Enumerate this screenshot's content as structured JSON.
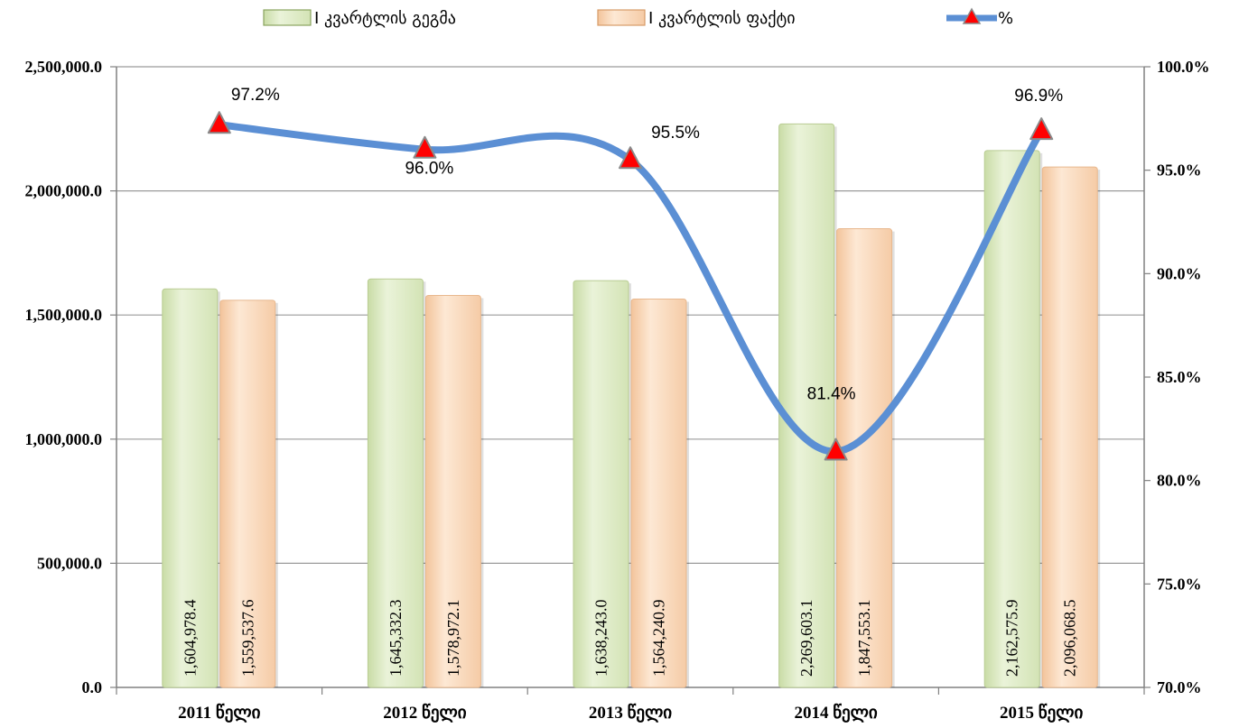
{
  "chart_data": {
    "type": "bar",
    "categories": [
      "2011 წელი",
      "2012 წელი",
      "2013 წელი",
      "2014 წელი",
      "2015 წელი"
    ],
    "series": [
      {
        "name": "I კვარტლის გეგმა",
        "values": [
          1604978.4,
          1645332.3,
          1638243.0,
          2269603.1,
          2162575.9
        ],
        "labels": [
          "1,604,978.4",
          "1,645,332.3",
          "1,638,243.0",
          "2,269,603.1",
          "2,162,575.9"
        ],
        "color": "#dbe9c3"
      },
      {
        "name": "I კვარტლის  ფაქტი",
        "values": [
          1559537.6,
          1578972.1,
          1564240.9,
          1847553.1,
          2096068.5
        ],
        "labels": [
          "1,559,537.6",
          "1,578,972.1",
          "1,564,240.9",
          "1,847,553.1",
          "2,096,068.5"
        ],
        "color": "#fbd9bc"
      },
      {
        "name": "%",
        "type": "line",
        "axis": "right",
        "values": [
          97.2,
          96.0,
          95.5,
          81.4,
          96.9
        ],
        "labels": [
          "97.2%",
          "96.0%",
          "95.5%",
          "81.4%",
          "96.9%"
        ],
        "color": "#5b8fd4",
        "marker_color": "#ff0000"
      }
    ],
    "ylim": [
      0,
      2500000
    ],
    "y_ticks": [
      "0.0",
      "500,000.0",
      "1,000,000.0",
      "1,500,000.0",
      "2,000,000.0",
      "2,500,000.0"
    ],
    "y2lim": [
      70,
      100
    ],
    "y2_ticks": [
      "70.0%",
      "75.0%",
      "80.0%",
      "85.0%",
      "90.0%",
      "95.0%",
      "100.0%"
    ],
    "grid": true,
    "legend_position": "top"
  }
}
